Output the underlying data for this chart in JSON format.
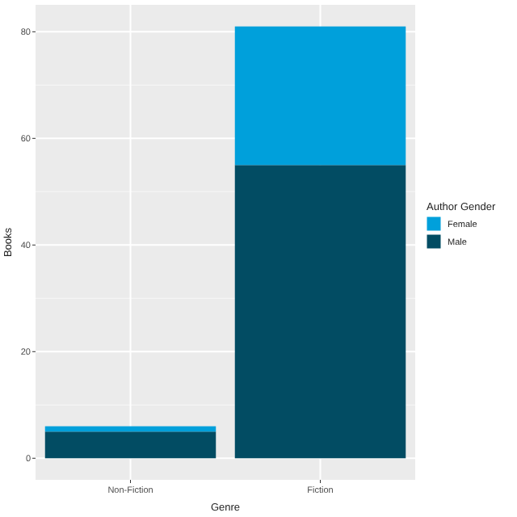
{
  "chart_data": {
    "type": "bar",
    "stacked": true,
    "xlabel": "Genre",
    "ylabel": "Books",
    "legend_title": "Author Gender",
    "categories": [
      "Non-Fiction",
      "Fiction"
    ],
    "series": [
      {
        "name": "Male",
        "color": "#024c63",
        "values": [
          5,
          55
        ]
      },
      {
        "name": "Female",
        "color": "#00a0db",
        "values": [
          1,
          26
        ]
      }
    ],
    "ylim": [
      -4.05,
      85.05
    ],
    "yticks": [
      0,
      20,
      40,
      60,
      80
    ],
    "grid": true,
    "legend": "right"
  }
}
